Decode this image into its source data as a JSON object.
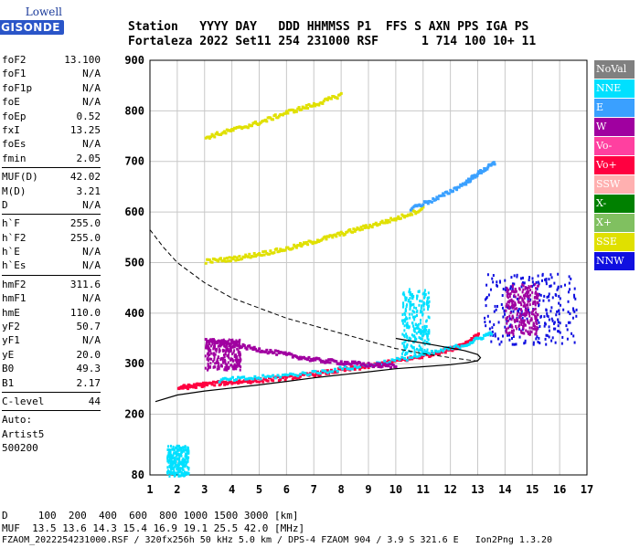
{
  "logo": {
    "line1": "Lowell",
    "line2": "DIGISONDE"
  },
  "header": {
    "labels": [
      "Station",
      "YYYY DAY",
      "DDD HHMMSS",
      "P1",
      "FFS",
      "S",
      "AXN",
      "PPS",
      "IGA",
      "PS"
    ],
    "values": [
      "Fortaleza",
      "2022 Set11",
      "254 231000",
      "RSF",
      "",
      "1",
      "714",
      "100",
      "10+",
      "11"
    ]
  },
  "sidebar": {
    "group1": [
      {
        "k": "foF2",
        "v": "13.100"
      },
      {
        "k": "foF1",
        "v": "N/A"
      },
      {
        "k": "foF1p",
        "v": "N/A"
      },
      {
        "k": "foE",
        "v": "N/A"
      },
      {
        "k": "foEp",
        "v": "0.52"
      },
      {
        "k": "fxI",
        "v": "13.25"
      },
      {
        "k": "foEs",
        "v": "N/A"
      },
      {
        "k": "fmin",
        "v": "2.05"
      }
    ],
    "group2": [
      {
        "k": "MUF(D)",
        "v": "42.02"
      },
      {
        "k": "M(D)",
        "v": "3.21"
      },
      {
        "k": "D",
        "v": "N/A"
      }
    ],
    "group3": [
      {
        "k": "h`F",
        "v": "255.0"
      },
      {
        "k": "h`F2",
        "v": "255.0"
      },
      {
        "k": "h`E",
        "v": "N/A"
      },
      {
        "k": "h`Es",
        "v": "N/A"
      }
    ],
    "group4": [
      {
        "k": "hmF2",
        "v": "311.6"
      },
      {
        "k": "hmF1",
        "v": "N/A"
      },
      {
        "k": "hmE",
        "v": "110.0"
      },
      {
        "k": "yF2",
        "v": "50.7"
      },
      {
        "k": "yF1",
        "v": "N/A"
      },
      {
        "k": "yE",
        "v": "20.0"
      },
      {
        "k": "B0",
        "v": "49.3"
      },
      {
        "k": "B1",
        "v": "2.17"
      }
    ],
    "group5": [
      {
        "k": "C-level",
        "v": "44"
      }
    ],
    "auto": [
      "Auto:",
      "Artist5",
      "500200"
    ]
  },
  "legend": [
    {
      "label": "NoVal",
      "color": "#808080"
    },
    {
      "label": "NNE",
      "color": "#00e0ff"
    },
    {
      "label": "E",
      "color": "#3aa0ff"
    },
    {
      "label": "W",
      "color": "#a000a0"
    },
    {
      "label": "Vo-",
      "color": "#ff40a0"
    },
    {
      "label": "Vo+",
      "color": "#ff0040"
    },
    {
      "label": "SSW",
      "color": "#ffb0b0"
    },
    {
      "label": "X-",
      "color": "#008000"
    },
    {
      "label": "X+",
      "color": "#80c060"
    },
    {
      "label": "SSE",
      "color": "#e0e000"
    },
    {
      "label": "NNW",
      "color": "#1010e0"
    }
  ],
  "bottom": {
    "distance": "D     100  200  400  600  800 1000 1500 3000 [km]",
    "muf": "MUF  13.5 13.6 14.3 15.4 16.9 19.1 25.5 42.0 [MHz]",
    "footer": "FZAOM_2022254231000.RSF / 320fx256h 50 kHz 5.0 km / DPS-4 FZAOM 904 / 3.9 S 321.6 E   Ion2Png 1.3.20"
  },
  "chart_data": {
    "type": "scatter",
    "xlim": [
      1,
      17
    ],
    "ylim": [
      80,
      900
    ],
    "xticks": [
      1,
      2,
      3,
      4,
      5,
      6,
      7,
      8,
      9,
      10,
      11,
      12,
      13,
      14,
      15,
      16,
      17
    ],
    "yticks": [
      80,
      200,
      300,
      400,
      500,
      600,
      700,
      800,
      900
    ],
    "grid": true,
    "curves": {
      "profile_solid": {
        "x": [
          1.2,
          2.0,
          3.0,
          4.0,
          5.0,
          6.0,
          7.0,
          8.0,
          9.0,
          10.0,
          11.0,
          12.0,
          12.6,
          13.0,
          13.1,
          13.0,
          12.5,
          11.5,
          10.0
        ],
        "y": [
          225,
          238,
          246,
          252,
          258,
          265,
          272,
          278,
          284,
          290,
          294,
          298,
          302,
          306,
          312,
          318,
          326,
          336,
          350
        ]
      },
      "profile_dashed": {
        "x": [
          1.0,
          1.5,
          2.0,
          3.0,
          4.0,
          5.0,
          6.0,
          7.0,
          8.0,
          9.0,
          10.0,
          11.0,
          12.0,
          13.0
        ],
        "y": [
          565,
          530,
          500,
          460,
          430,
          410,
          390,
          375,
          360,
          345,
          330,
          320,
          312,
          305
        ]
      }
    },
    "traces": [
      {
        "series": "Vo+",
        "color": "#ff0040",
        "x": [
          2.0,
          2.5,
          3.0,
          4.0,
          5.0,
          6.0,
          7.0,
          8.0,
          9.0,
          10.0,
          11.0,
          12.0,
          12.6,
          13.0
        ],
        "y": [
          255,
          258,
          262,
          266,
          270,
          275,
          282,
          290,
          298,
          308,
          318,
          332,
          345,
          360
        ]
      },
      {
        "series": "NNE",
        "color": "#00e0ff",
        "x": [
          3.5,
          5.0,
          7.0,
          9.0,
          11.0,
          12.5,
          13.5
        ],
        "y": [
          270,
          275,
          285,
          300,
          320,
          340,
          365
        ]
      },
      {
        "series": "SSE",
        "color": "#e0e000",
        "x": [
          3.0,
          4.0,
          5.0,
          6.0,
          7.0,
          8.0,
          9.0,
          10.0,
          11.0
        ],
        "y": [
          505,
          510,
          520,
          530,
          545,
          560,
          575,
          590,
          610
        ]
      },
      {
        "series": "SSE",
        "color": "#e0e000",
        "x": [
          3.0,
          4.0,
          5.0,
          6.0,
          7.0,
          8.0
        ],
        "y": [
          750,
          765,
          780,
          800,
          815,
          835
        ]
      },
      {
        "series": "E",
        "color": "#3aa0ff",
        "x": [
          10.5,
          11.5,
          12.5,
          13.0,
          13.6
        ],
        "y": [
          610,
          630,
          660,
          680,
          700
        ]
      },
      {
        "series": "W",
        "color": "#a000a0",
        "x": [
          3.0,
          4.0,
          5.0,
          6.0,
          7.0,
          8.0,
          9.0,
          10.0
        ],
        "y": [
          350,
          340,
          330,
          320,
          310,
          305,
          300,
          298
        ]
      }
    ],
    "clusters": [
      {
        "series": "NNW",
        "color": "#1010e0",
        "x": [
          13.2,
          16.6
        ],
        "y": [
          340,
          480
        ]
      },
      {
        "series": "W",
        "color": "#a000a0",
        "x": [
          14.0,
          15.2
        ],
        "y": [
          360,
          460
        ]
      },
      {
        "series": "NNE",
        "color": "#00e0ff",
        "x": [
          10.2,
          11.2
        ],
        "y": [
          320,
          450
        ]
      },
      {
        "series": "NNE",
        "color": "#00e0ff",
        "x": [
          1.6,
          2.4
        ],
        "y": [
          80,
          140
        ]
      },
      {
        "series": "W",
        "color": "#a000a0",
        "x": [
          3.0,
          4.3
        ],
        "y": [
          290,
          350
        ]
      }
    ]
  }
}
